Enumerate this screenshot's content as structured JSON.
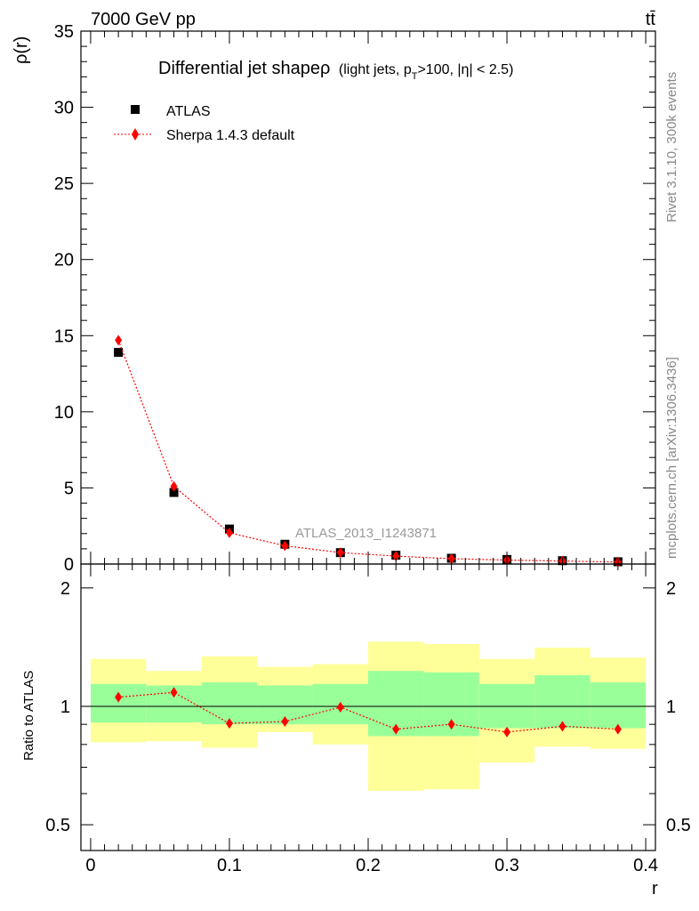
{
  "header": {
    "energy_label": "7000 GeV pp",
    "process_label": "tt̄"
  },
  "side_labels": {
    "rivet": "Rivet 3.1.10,  300k events",
    "mcplots": "mcplots.cern.ch [arXiv:1306.3436]"
  },
  "watermark": "ATLAS_2013_I1243871",
  "chart_data": [
    {
      "type": "scatter",
      "title": "Differential jet shapeρ",
      "title_suffix_parts": [
        "(light jets, p",
        "T",
        ">100, |η| < 2.5)"
      ],
      "ylabel": "ρ(r)",
      "xlabel": "",
      "xlim": [
        -0.007,
        0.407
      ],
      "ylim": [
        0,
        35
      ],
      "yticks": [
        0,
        5,
        10,
        15,
        20,
        25,
        30,
        35
      ],
      "ytick_labels": [
        "0",
        "5",
        "10",
        "15",
        "20",
        "25",
        "30",
        "35"
      ],
      "legend": {
        "placement": "top-left"
      },
      "series": [
        {
          "name": "ATLAS",
          "marker": "square",
          "color": "#000000",
          "x": [
            0.02,
            0.06,
            0.1,
            0.14,
            0.18,
            0.22,
            0.26,
            0.3,
            0.34,
            0.38
          ],
          "y": [
            13.9,
            4.7,
            2.3,
            1.3,
            0.75,
            0.58,
            0.38,
            0.3,
            0.22,
            0.15
          ]
        },
        {
          "name": "Sherpa 1.4.3 default",
          "marker": "diamond",
          "line": "dotted",
          "color": "#ff0000",
          "x": [
            0.02,
            0.06,
            0.1,
            0.14,
            0.18,
            0.22,
            0.26,
            0.3,
            0.34,
            0.38
          ],
          "y": [
            14.7,
            5.1,
            2.05,
            1.2,
            0.75,
            0.52,
            0.35,
            0.26,
            0.2,
            0.13
          ]
        }
      ]
    },
    {
      "type": "scatter",
      "title": "",
      "ylabel": "Ratio to ATLAS",
      "xlabel": "r",
      "xlim": [
        -0.007,
        0.407
      ],
      "ylim": [
        0.43,
        2.3
      ],
      "ylog": true,
      "yticks": [
        0.5,
        1,
        2
      ],
      "ytick_labels": [
        "0.5",
        "1",
        "2"
      ],
      "xticks": [
        0,
        0.1,
        0.2,
        0.3,
        0.4
      ],
      "xtick_labels": [
        "0",
        "0.1",
        "0.2",
        "0.3",
        "0.4"
      ],
      "reference_line": 1,
      "bands": {
        "bin_edges": [
          0.0,
          0.04,
          0.08,
          0.12,
          0.16,
          0.2,
          0.24,
          0.28,
          0.32,
          0.36,
          0.4
        ],
        "inner_color": "#99ff99",
        "outer_color": "#ffff99",
        "inner_low": [
          0.91,
          0.91,
          0.9,
          0.9,
          0.9,
          0.84,
          0.84,
          0.88,
          0.88,
          0.88
        ],
        "inner_high": [
          1.14,
          1.13,
          1.15,
          1.13,
          1.14,
          1.23,
          1.22,
          1.14,
          1.2,
          1.15
        ],
        "outer_low": [
          0.81,
          0.815,
          0.785,
          0.86,
          0.8,
          0.61,
          0.615,
          0.72,
          0.79,
          0.78
        ],
        "outer_high": [
          1.32,
          1.23,
          1.34,
          1.26,
          1.28,
          1.46,
          1.44,
          1.32,
          1.41,
          1.33
        ]
      },
      "series": [
        {
          "name": "Sherpa 1.4.3 default",
          "marker": "diamond",
          "line": "dotted",
          "color": "#ff0000",
          "x": [
            0.02,
            0.06,
            0.1,
            0.14,
            0.18,
            0.22,
            0.26,
            0.3,
            0.34,
            0.38
          ],
          "y": [
            1.055,
            1.085,
            0.905,
            0.915,
            0.995,
            0.875,
            0.9,
            0.86,
            0.89,
            0.875
          ]
        }
      ]
    }
  ]
}
